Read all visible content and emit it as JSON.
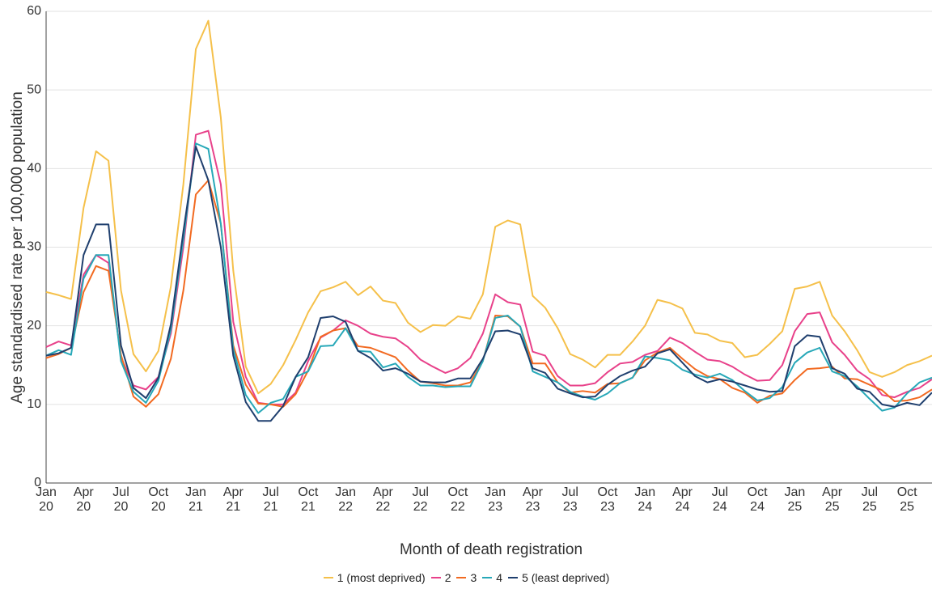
{
  "chart_data": {
    "type": "line",
    "y_label": "Age standardised rate per 100,000 population",
    "x_label": "Month of death registration",
    "categories": [
      "Jan\n20",
      null,
      null,
      "Apr\n20",
      null,
      null,
      "Jul\n20",
      null,
      null,
      "Oct\n20",
      null,
      null,
      "Jan\n21",
      null,
      null,
      "Apr\n21",
      null,
      null,
      "Jul\n21",
      null,
      null,
      "Oct\n21",
      null,
      null,
      "Jan\n22",
      null,
      null,
      "Apr\n22",
      null,
      null,
      "Jul\n22",
      null,
      null,
      "Oct\n22",
      null,
      null,
      "Jan\n23",
      null,
      null,
      "Apr\n23",
      null,
      null,
      "Jul\n23",
      null,
      null,
      "Oct\n23",
      null,
      null,
      "Jan\n24",
      null,
      null,
      "Apr\n24",
      null,
      null,
      "Jul\n24",
      null,
      null,
      "Oct\n24",
      null,
      null,
      "Jan\n25",
      null,
      null,
      "Apr\n25",
      null,
      null,
      "Jul\n25",
      null,
      null,
      "Oct\n25",
      null,
      null
    ],
    "ylim": [
      0,
      60
    ],
    "yticks": [
      0,
      10,
      20,
      30,
      40,
      50,
      60
    ],
    "grid": true,
    "series": [
      {
        "name": "1 (most deprived)",
        "color": "#f5c04a",
        "values": [
          24.3,
          23.9,
          23.4,
          35,
          42.2,
          41,
          24.5,
          16.4,
          14.2,
          16.8,
          25,
          38,
          55.2,
          58.8,
          46.5,
          27,
          14.8,
          11.4,
          12.6,
          15,
          18.2,
          21.7,
          24.4,
          24.9,
          25.6,
          23.9,
          25,
          23.2,
          22.9,
          20.4,
          19.2,
          20.1,
          20,
          21.2,
          20.9,
          24,
          32.6,
          33.4,
          32.9,
          23.8,
          22.3,
          19.7,
          16.4,
          15.7,
          14.7,
          16.3,
          16.3,
          18,
          20,
          23.3,
          22.9,
          22.2,
          19.1,
          18.9,
          18.1,
          17.8,
          16,
          16.3,
          17.7,
          19.3,
          24.7,
          25,
          25.6,
          21.3,
          19.3,
          16.9,
          14.1,
          13.5,
          14.1,
          15,
          15.5,
          16.2
        ]
      },
      {
        "name": "2",
        "color": "#e8418a",
        "values": [
          17.3,
          18,
          17.5,
          26.5,
          29,
          28,
          16,
          12.4,
          11.9,
          13.5,
          19,
          30,
          44.3,
          44.8,
          38,
          20.5,
          13.5,
          10.2,
          10,
          10,
          11.5,
          15.5,
          18.5,
          19.4,
          20.7,
          20,
          19,
          18.6,
          18.4,
          17.3,
          15.7,
          14.8,
          14,
          14.6,
          15.9,
          19,
          24,
          23,
          22.7,
          16.7,
          16.2,
          13.6,
          12.4,
          12.4,
          12.7,
          14.1,
          15.2,
          15.4,
          16.3,
          16.8,
          18.5,
          17.8,
          16.7,
          15.7,
          15.5,
          14.8,
          13.8,
          13,
          13.1,
          15,
          19.3,
          21.5,
          21.7,
          17.9,
          16.3,
          14.3,
          13.2,
          11.2,
          10.9,
          11.6,
          12.1,
          13.2
        ]
      },
      {
        "name": "3",
        "color": "#f26a21",
        "values": [
          15.9,
          16.4,
          17.2,
          24.3,
          27.6,
          27,
          16.3,
          11,
          9.7,
          11.3,
          15.8,
          24.5,
          36.7,
          38.5,
          33,
          17.5,
          12.5,
          10.1,
          10,
          9.7,
          11.3,
          14.3,
          18.6,
          19.4,
          19.7,
          17.4,
          17.2,
          16.6,
          16,
          14.3,
          12.9,
          12.7,
          12.4,
          12.4,
          12.8,
          15.5,
          21.3,
          21.2,
          19.9,
          15.2,
          15.2,
          12.8,
          11.5,
          11.7,
          11.5,
          12.6,
          12.7,
          13.4,
          15.6,
          16.6,
          17.2,
          15.8,
          14.5,
          13.6,
          13.2,
          12.1,
          11.5,
          10.2,
          11.1,
          11.4,
          13.1,
          14.5,
          14.6,
          14.8,
          13.3,
          13.2,
          12.5,
          11.8,
          10.4,
          10.5,
          10.9,
          11.9
        ]
      },
      {
        "name": "4",
        "color": "#27a8b8",
        "values": [
          16.2,
          16.9,
          16.3,
          26,
          29,
          29,
          15.5,
          11.6,
          10.2,
          13,
          19.5,
          31,
          43.2,
          42.5,
          33,
          17,
          11.2,
          8.9,
          10.2,
          10.7,
          13.5,
          14.2,
          17.4,
          17.5,
          19.7,
          16.8,
          16.7,
          14.7,
          15.2,
          13.5,
          12.4,
          12.4,
          12.2,
          12.3,
          12.3,
          15.5,
          21,
          21.3,
          19.9,
          14.2,
          13.5,
          12.8,
          11.6,
          11,
          10.6,
          11.4,
          12.7,
          13.4,
          16.1,
          15.9,
          15.6,
          14.4,
          13.8,
          13.4,
          13.9,
          13.1,
          11.7,
          10.5,
          10.8,
          12.2,
          15.3,
          16.6,
          17.2,
          14.2,
          13.6,
          12.3,
          10.7,
          9.2,
          9.6,
          11.4,
          12.8,
          13.4
        ]
      },
      {
        "name": "5 (least deprived)",
        "color": "#1f3f6e",
        "values": [
          16.2,
          16.5,
          17.2,
          29,
          32.9,
          32.9,
          17.5,
          12.1,
          10.8,
          13.4,
          20.2,
          32,
          42.8,
          38.5,
          30,
          16.2,
          10.3,
          7.9,
          7.9,
          9.8,
          13.5,
          16,
          21,
          21.2,
          20.5,
          16.8,
          15.9,
          14.3,
          14.6,
          13.9,
          12.9,
          12.8,
          12.8,
          13.3,
          13.3,
          15.8,
          19.3,
          19.4,
          18.9,
          14.6,
          14,
          12,
          11.4,
          10.9,
          11,
          12.5,
          13.6,
          14.3,
          14.8,
          16.5,
          17,
          15.3,
          13.6,
          12.8,
          13.2,
          12.9,
          12.4,
          11.9,
          11.6,
          11.7,
          17.4,
          18.8,
          18.6,
          14.6,
          13.9,
          12,
          11.6,
          10,
          9.7,
          10.2,
          9.9,
          11.5
        ]
      }
    ]
  }
}
